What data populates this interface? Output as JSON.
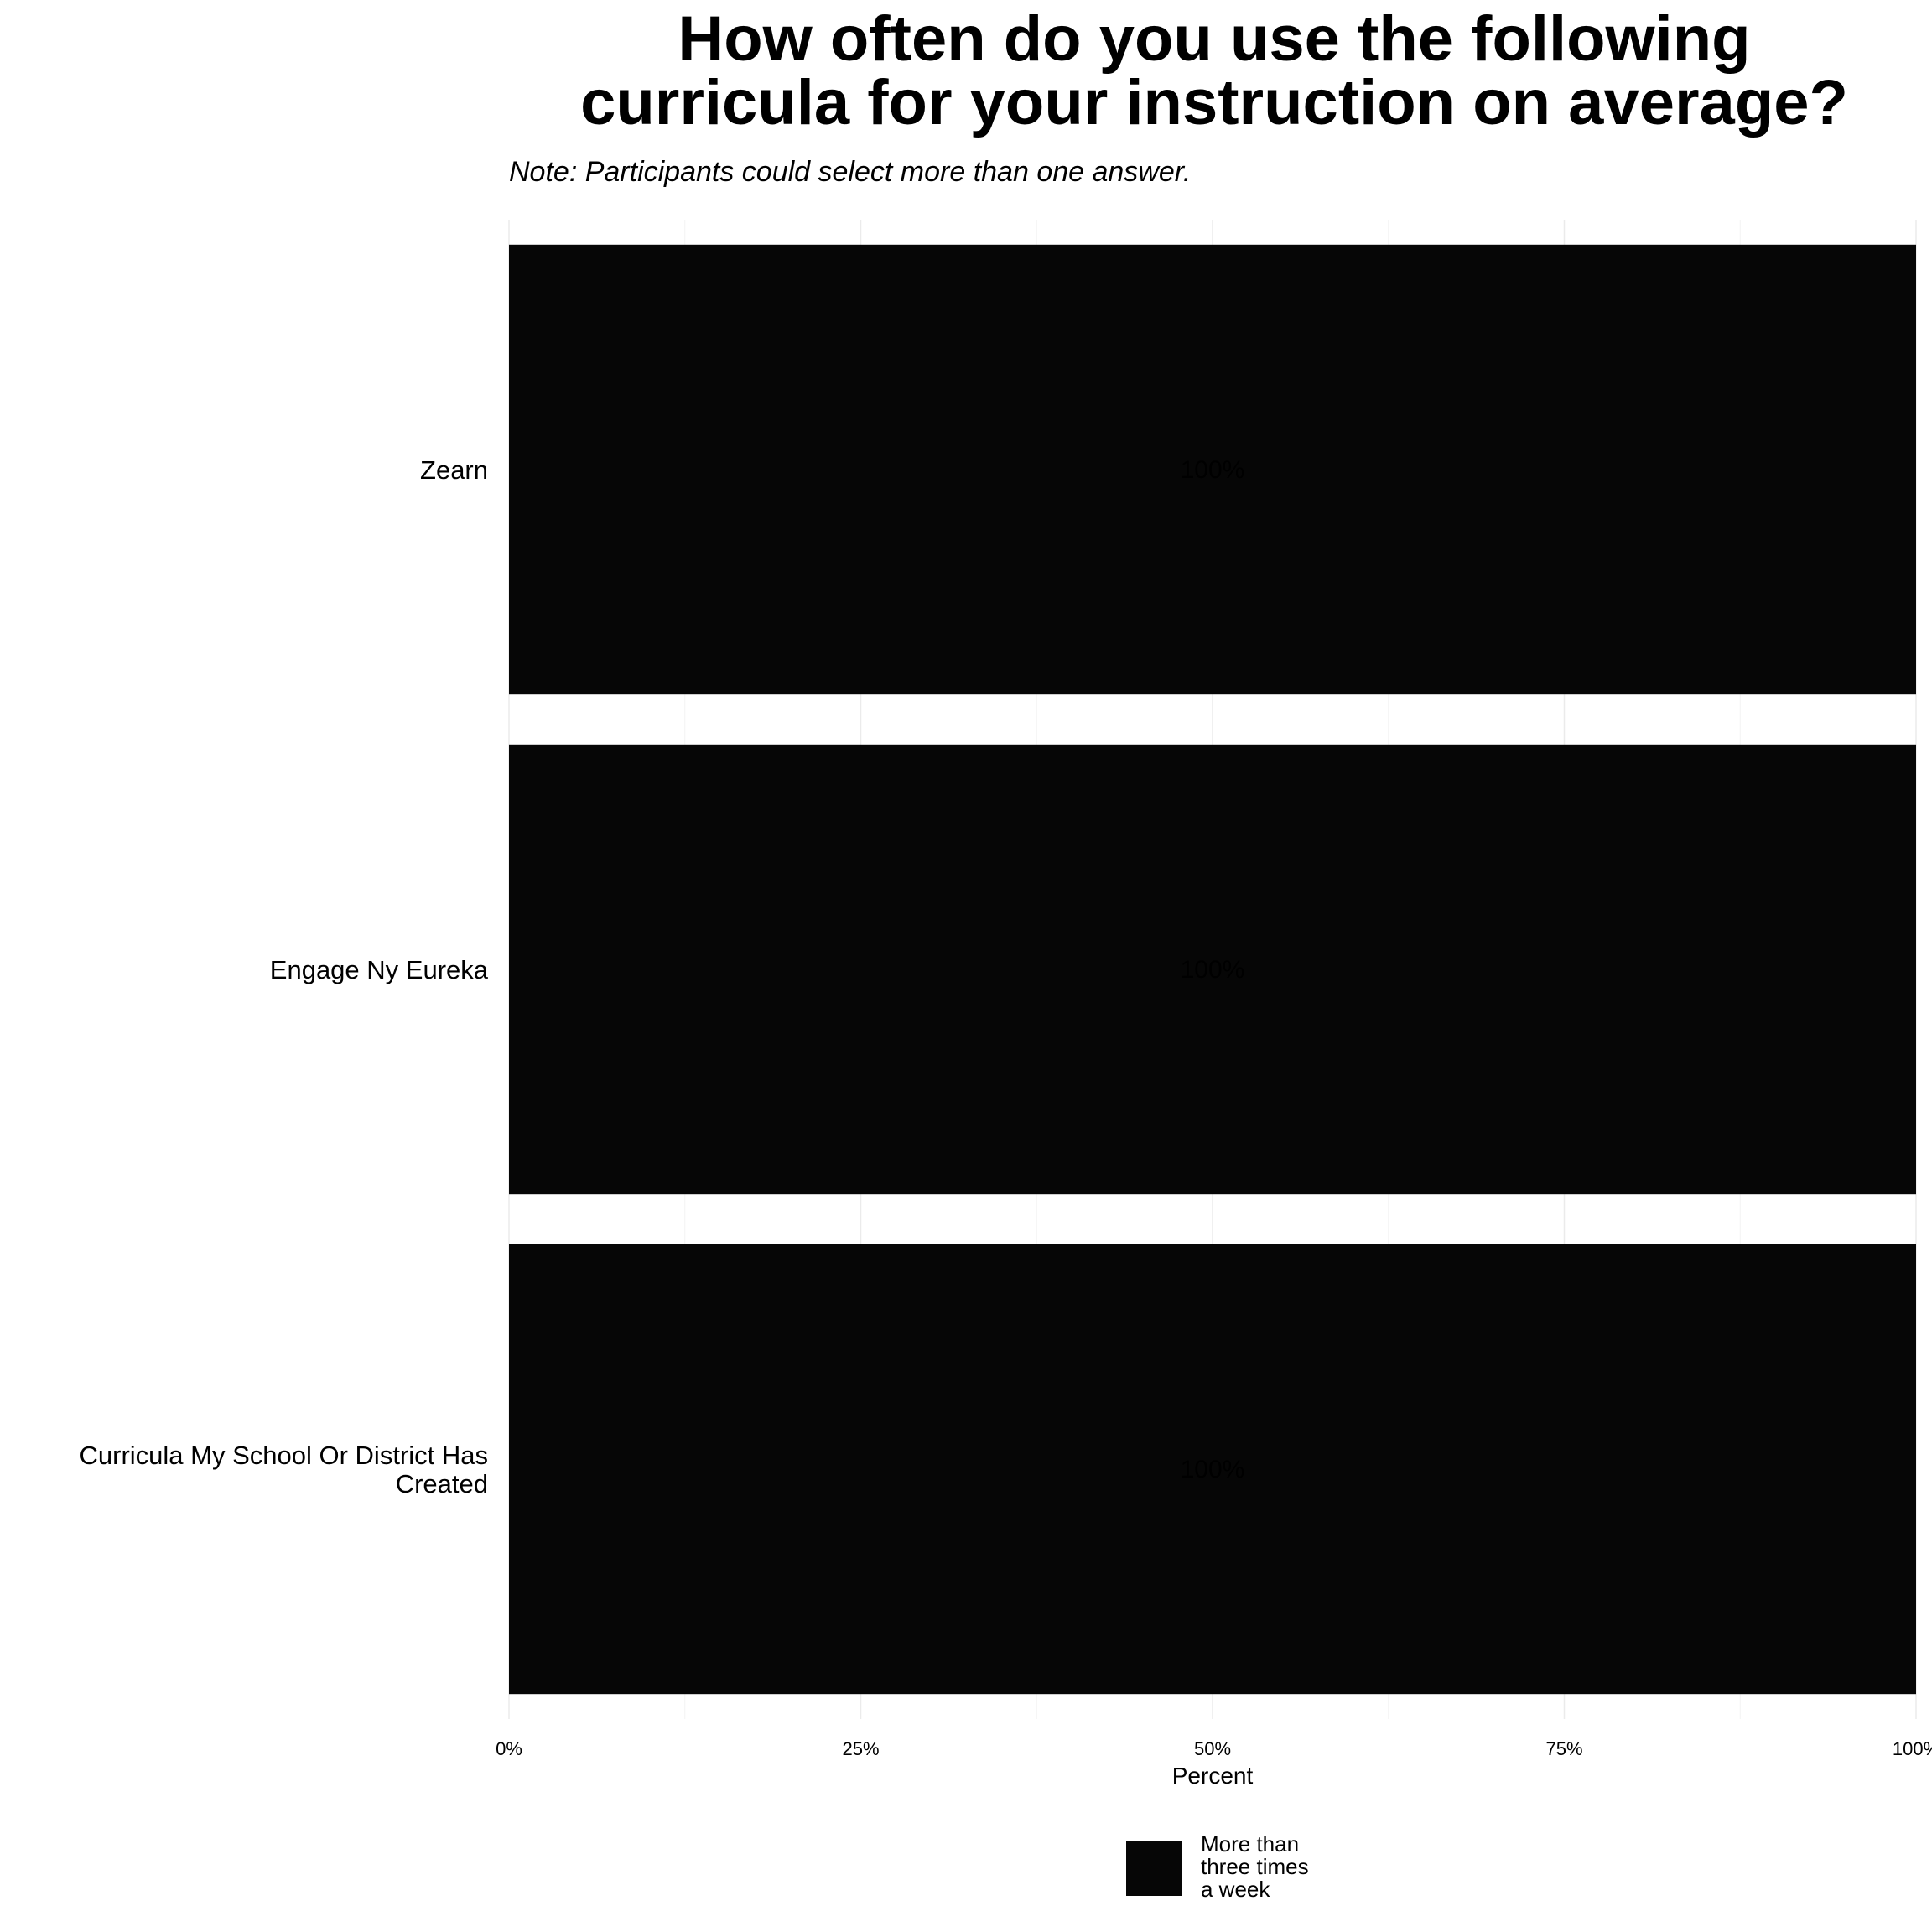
{
  "chart_data": {
    "type": "bar",
    "orientation": "horizontal",
    "title": [
      "How often do you use the following",
      "curricula for your instruction on average?"
    ],
    "subtitle": "Note: Participants could select more than one answer.",
    "categories": [
      [
        "Zearn"
      ],
      [
        "Engage Ny Eureka"
      ],
      [
        "Curricula My School Or District Has",
        "Created"
      ]
    ],
    "series": [
      {
        "name": [
          "More than",
          "three times",
          "a week"
        ],
        "color": "#060606",
        "values": [
          100,
          100,
          100
        ],
        "labels": [
          "100%",
          "100%",
          "100%"
        ]
      }
    ],
    "xlabel": "Percent",
    "xlim": [
      0,
      100
    ],
    "xticks": [
      0,
      25,
      50,
      75,
      100
    ],
    "xtick_labels": [
      "0%",
      "25%",
      "50%",
      "75%",
      "100%"
    ],
    "grid": true,
    "legend_position": "bottom"
  }
}
